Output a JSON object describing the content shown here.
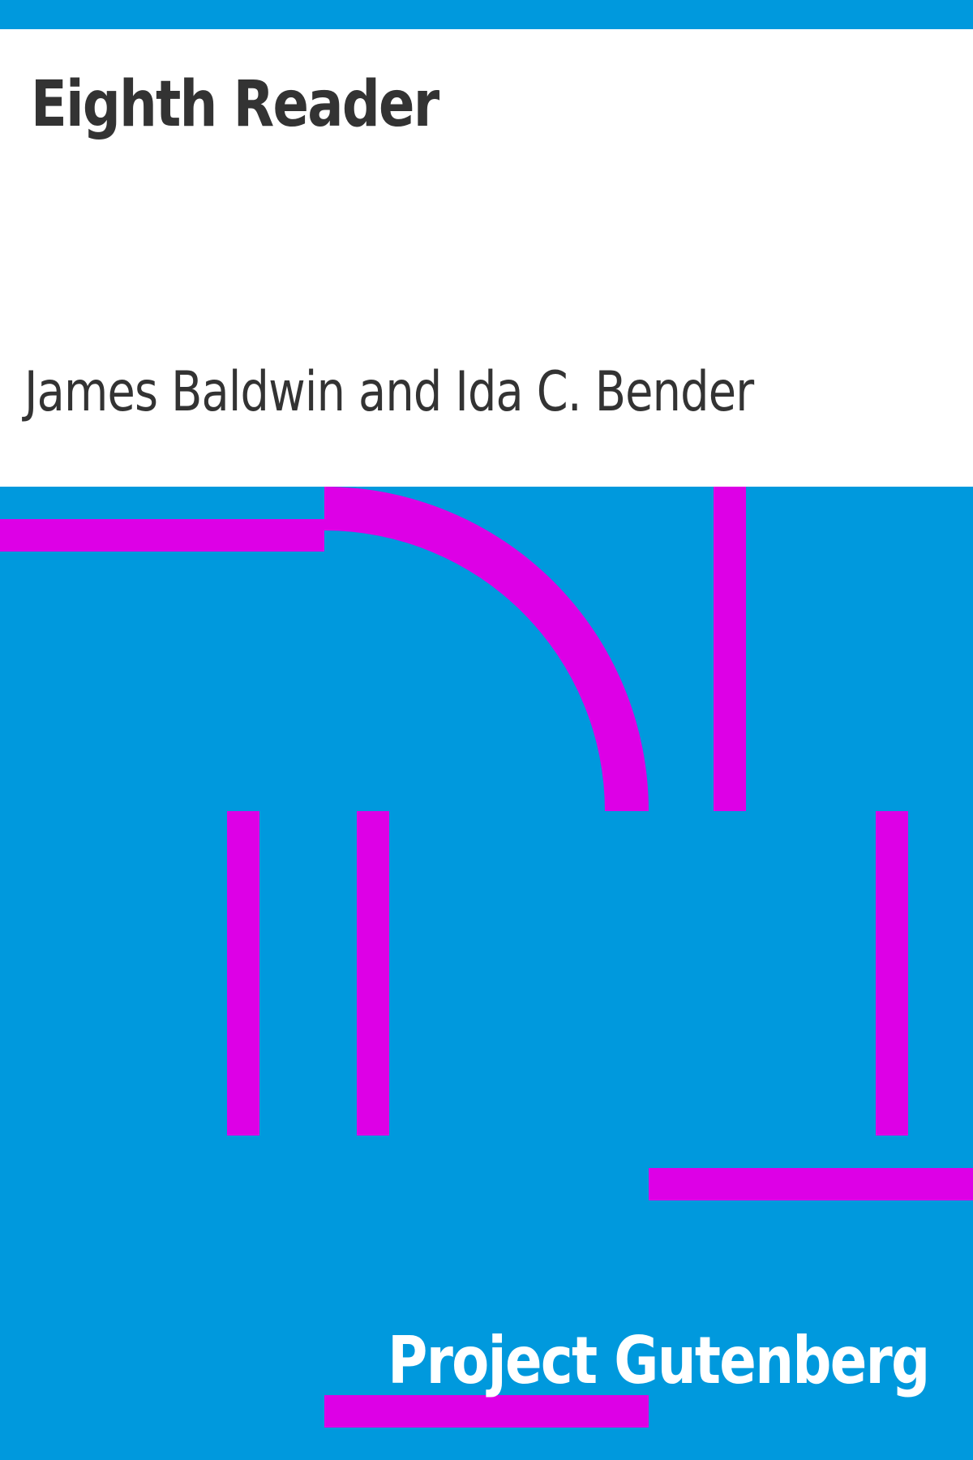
{
  "cover": {
    "title": "Eighth Reader",
    "author": "James Baldwin and Ida C. Bender",
    "publisher": "Project Gutenberg"
  },
  "colors": {
    "accent_blue": "#0099dd",
    "header_background": "#ffffff",
    "title_text": "#333333",
    "author_text": "#333333",
    "pattern_magenta": "#dd00e6",
    "publisher_text": "#ffffff"
  },
  "artwork": {
    "pattern": "geometric-lines-and-arc"
  }
}
